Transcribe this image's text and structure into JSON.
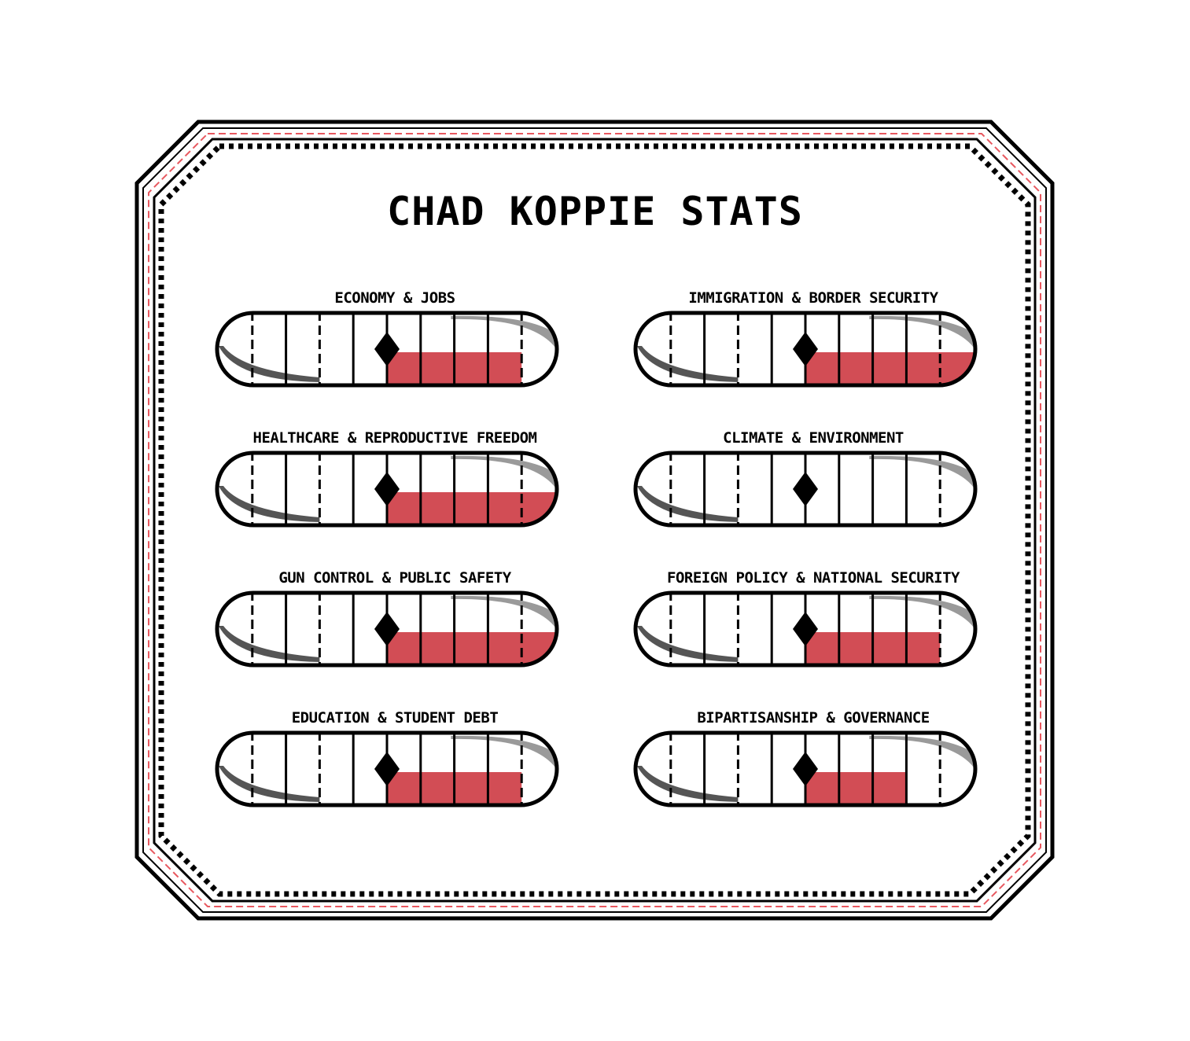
{
  "title": "CHAD KOPPIE STATS",
  "colors": {
    "fill": "#d24d55",
    "border": "#000000",
    "accent_dash": "#e8585f",
    "shine": "#9a9a9a",
    "shadow": "#555555"
  },
  "meter": {
    "segments": 10,
    "center_marker": "diamond-marker-icon"
  },
  "stats": [
    {
      "label": "ECONOMY & JOBS",
      "fill_from": 0.5,
      "fill_to": 0.9
    },
    {
      "label": "IMMIGRATION & BORDER SECURITY",
      "fill_from": 0.5,
      "fill_to": 1.0
    },
    {
      "label": "HEALTHCARE & REPRODUCTIVE FREEDOM",
      "fill_from": 0.5,
      "fill_to": 1.0
    },
    {
      "label": "CLIMATE & ENVIRONMENT",
      "fill_from": 0.5,
      "fill_to": 0.5
    },
    {
      "label": "GUN CONTROL & PUBLIC SAFETY",
      "fill_from": 0.5,
      "fill_to": 1.0
    },
    {
      "label": "FOREIGN POLICY & NATIONAL SECURITY",
      "fill_from": 0.5,
      "fill_to": 0.9
    },
    {
      "label": "EDUCATION & STUDENT DEBT",
      "fill_from": 0.5,
      "fill_to": 0.9
    },
    {
      "label": "BIPARTISANSHIP & GOVERNANCE",
      "fill_from": 0.5,
      "fill_to": 0.8
    }
  ]
}
